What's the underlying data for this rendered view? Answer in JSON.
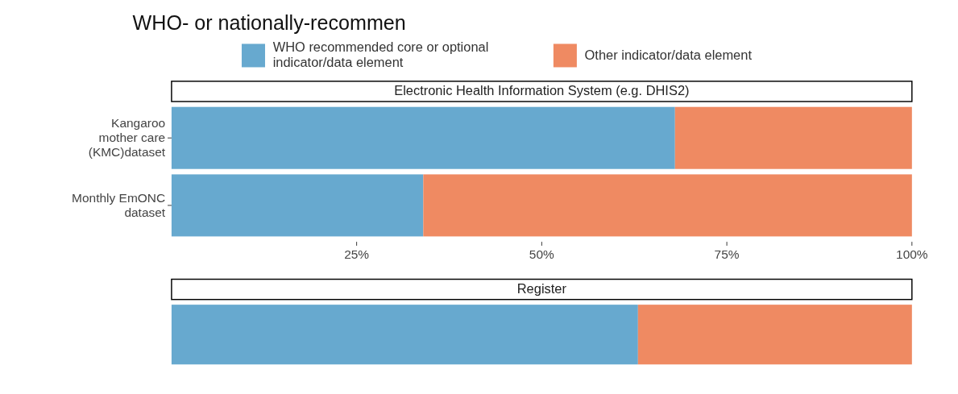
{
  "chart_data": [
    {
      "type": "bar",
      "title": "WHO- or nationally-recommen",
      "subtitle": "Electronic Health Information System (e.g. DHIS2)",
      "orientation": "horizontal",
      "stacked": true,
      "legend": "top",
      "categories": [
        "Kangaroo mother care (KMC)dataset",
        "Monthly EmONC dataset"
      ],
      "series": [
        {
          "name": "WHO recommended core or optional indicator/data element",
          "color": "#67a9cf",
          "values": [
            68,
            34
          ]
        },
        {
          "name": "Other indicator/data element",
          "color": "#ef8a62",
          "values": [
            32,
            66
          ]
        }
      ],
      "xlim": [
        0,
        100
      ],
      "xticks": [
        {
          "value": 25,
          "label": "25%"
        },
        {
          "value": 50,
          "label": "50%"
        },
        {
          "value": 75,
          "label": "75%"
        },
        {
          "value": 100,
          "label": "100%"
        }
      ],
      "grid": false
    },
    {
      "type": "bar",
      "subtitle": "Register",
      "orientation": "horizontal",
      "stacked": true,
      "categories": [
        null
      ],
      "series": [
        {
          "color": "#67a9cf",
          "values": [
            63
          ]
        },
        {
          "color": "#ef8a62",
          "values": [
            37
          ]
        }
      ],
      "xlim": [
        0,
        100
      ],
      "grid": false
    }
  ]
}
